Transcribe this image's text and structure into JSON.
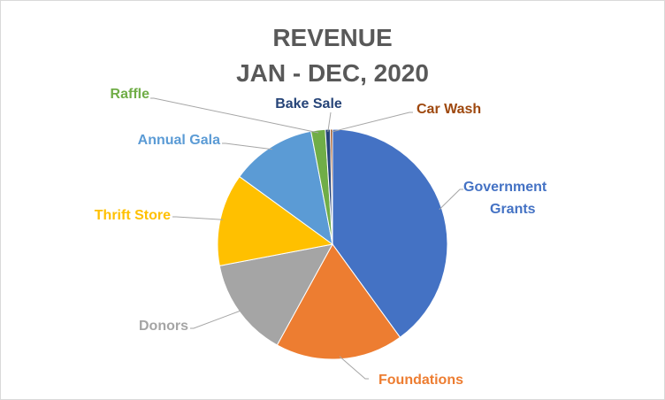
{
  "chart_data": {
    "type": "pie",
    "title": "REVENUE",
    "subtitle": "JAN - DEC, 2020",
    "slices": [
      {
        "label": "Government Grants",
        "label_lines": [
          "Government",
          "Grants"
        ],
        "value": 40.0,
        "color": "#4472C4"
      },
      {
        "label": "Foundations",
        "label_lines": [
          "Foundations"
        ],
        "value": 18.0,
        "color": "#ED7D31"
      },
      {
        "label": "Donors",
        "label_lines": [
          "Donors"
        ],
        "value": 14.0,
        "color": "#A5A5A5"
      },
      {
        "label": "Thrift Store",
        "label_lines": [
          "Thrift Store"
        ],
        "value": 13.0,
        "color": "#FFC000"
      },
      {
        "label": "Annual Gala",
        "label_lines": [
          "Annual Gala"
        ],
        "value": 12.0,
        "color": "#5B9BD5"
      },
      {
        "label": "Raffle",
        "label_lines": [
          "Raffle"
        ],
        "value": 2.0,
        "color": "#70AD47"
      },
      {
        "label": "Bake Sale",
        "label_lines": [
          "Bake Sale"
        ],
        "value": 0.7,
        "color": "#264478"
      },
      {
        "label": "Car Wash",
        "label_lines": [
          "Car Wash"
        ],
        "value": 0.3,
        "color": "#9E480E"
      }
    ],
    "start_angle_deg": 0,
    "direction": "clockwise",
    "legend": "none"
  }
}
